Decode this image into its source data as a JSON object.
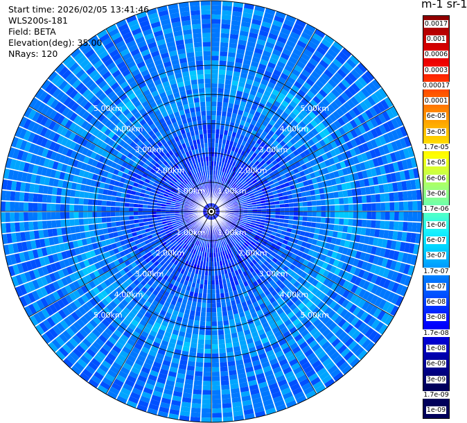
{
  "info": {
    "start_time": "Start time: 2026/02/05 13:41:46",
    "instrument": "WLS200s-181",
    "field": "Field: BETA",
    "elevation": "Elevation(deg): 35.00",
    "nrays": "NRays: 120"
  },
  "colorbar": {
    "units_label": "m-1 sr-1",
    "labels": [
      "0.0017",
      "0.001",
      "0.0006",
      "0.0003",
      "0.00017",
      "0.0001",
      "6e-05",
      "3e-05",
      "1.7e-05",
      "1e-05",
      "6e-06",
      "3e-06",
      "1.7e-06",
      "1e-06",
      "6e-07",
      "3e-07",
      "1.7e-07",
      "1e-07",
      "6e-08",
      "3e-08",
      "1.7e-08",
      "1e-08",
      "6e-09",
      "3e-09",
      "1.7e-09",
      "1e-09"
    ],
    "colors": [
      "#8b0000",
      "#b40000",
      "#d40000",
      "#ee0000",
      "#ff2a00",
      "#ff5500",
      "#ff7f00",
      "#ffaa00",
      "#ffd200",
      "#ffff00",
      "#d2ff3a",
      "#a5ff6e",
      "#78ffa0",
      "#46ffd2",
      "#14f0ff",
      "#00d2ff",
      "#00a5ff",
      "#0078ff",
      "#0050ff",
      "#0028ff",
      "#0000ff",
      "#0000d2",
      "#0000aa",
      "#000082",
      "#00005a"
    ]
  },
  "chart_data": {
    "type": "heatmap",
    "projection": "polar (PPI scan)",
    "field": "BETA",
    "elevation_deg": 35.0,
    "nrays": 120,
    "range_rings_km": [
      1.0,
      2.0,
      3.0,
      4.0,
      5.0
    ],
    "ring_label": "km",
    "radial_lines_every_deg": 30,
    "max_range_km": 5.5,
    "approx_profile": [
      {
        "range_km": 0.5,
        "beta": 1e-08
      },
      {
        "range_km": 1.5,
        "beta": 2e-08
      },
      {
        "range_km": 2.5,
        "beta": 3e-08
      },
      {
        "range_km": 3.5,
        "beta": 6e-08
      },
      {
        "range_km": 4.5,
        "beta": 1e-07
      },
      {
        "range_km": 5.3,
        "beta": 6e-08
      }
    ],
    "colorbar_scale": "log",
    "colorbar_range": [
      1e-09,
      0.0017
    ],
    "grid": true
  }
}
